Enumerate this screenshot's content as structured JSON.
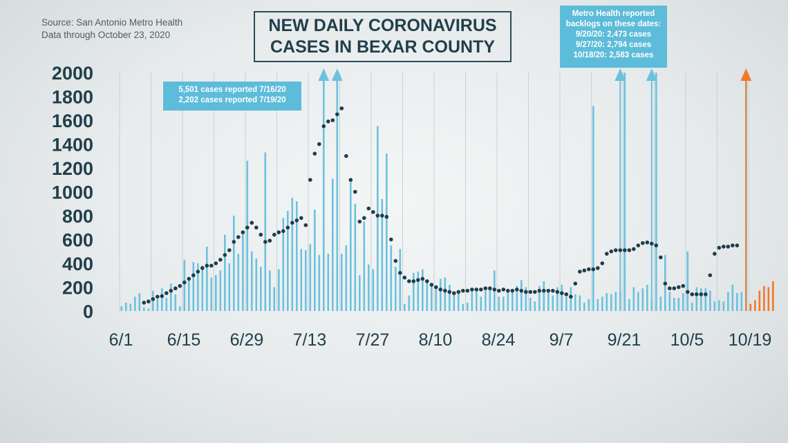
{
  "source": {
    "line1": "Source: San Antonio Metro Health",
    "line2": "Data through October 23, 2020"
  },
  "title": {
    "line1": "NEW DAILY CORONAVIRUS",
    "line2": "CASES IN BEXAR COUNTY"
  },
  "annotations": {
    "left_note": {
      "line1": "5,501 cases reported 7/16/20",
      "line2": "2,202 cases reported 7/19/20"
    },
    "right_note": {
      "line1": "Metro Health reported",
      "line2": "backlogs on these dates:",
      "line3": "9/20/20:  2,473 cases",
      "line4": "9/27/20:  2,794 cases",
      "line5": "10/18/20:  2,583 cases"
    }
  },
  "colors": {
    "bar": "#6cc1de",
    "bar_highlight": "#f07a2a",
    "trend_dots": "#1f3d49",
    "grid": "#c9d0d3",
    "text": "#213f4a",
    "note_fill": "#5dbcd9"
  },
  "chart_data": {
    "type": "bar",
    "ylim": [
      0,
      2000
    ],
    "y_ticks": [
      0,
      200,
      400,
      600,
      800,
      1000,
      1200,
      1400,
      1600,
      1800,
      2000
    ],
    "x_tick_labels": [
      "6/1",
      "6/15",
      "6/29",
      "7/13",
      "7/27",
      "8/10",
      "8/24",
      "9/7",
      "9/21",
      "10/5",
      "10/19"
    ],
    "x_tick_day_index": [
      0,
      14,
      28,
      42,
      56,
      70,
      84,
      98,
      112,
      126,
      140
    ],
    "grid": "vertical",
    "series": [
      {
        "kind": "bars",
        "day_index_start": 0,
        "values": [
          40,
          70,
          60,
          120,
          150,
          30,
          20,
          170,
          100,
          190,
          110,
          230,
          140,
          40,
          430,
          260,
          410,
          400,
          380,
          540,
          280,
          300,
          340,
          640,
          400,
          800,
          480,
          650,
          1260,
          500,
          440,
          370,
          1330,
          340,
          200,
          350,
          780,
          840,
          950,
          920,
          520,
          510,
          560,
          850,
          470,
          2000,
          480,
          1110,
          2000,
          480,
          550,
          1110,
          900,
          300,
          750,
          390,
          350,
          1550,
          940,
          1320,
          550,
          370,
          520,
          60,
          130,
          320,
          330,
          350,
          250,
          230,
          190,
          270,
          280,
          220,
          150,
          170,
          60,
          70,
          170,
          180,
          120,
          170,
          190,
          340,
          120,
          120,
          160,
          160,
          210,
          260,
          200,
          110,
          80,
          210,
          250,
          170,
          130,
          200,
          220,
          120,
          200,
          140,
          130,
          70,
          100,
          1720,
          100,
          120,
          150,
          140,
          160,
          170,
          2000,
          100,
          200,
          160,
          190,
          220,
          100,
          2000,
          120,
          470,
          160,
          110,
          110,
          150,
          500,
          70,
          200,
          190,
          190,
          170,
          80,
          90,
          80,
          160,
          220,
          150,
          160,
          2000,
          60,
          90,
          170,
          210,
          200,
          250
        ],
        "highlight_from_index": 140
      },
      {
        "kind": "moving-average-dots",
        "day_index_start": 5,
        "values": [
          70,
          80,
          100,
          120,
          125,
          150,
          170,
          190,
          210,
          240,
          270,
          300,
          330,
          360,
          380,
          380,
          400,
          430,
          470,
          510,
          580,
          620,
          660,
          700,
          740,
          700,
          640,
          580,
          590,
          640,
          660,
          670,
          700,
          740,
          760,
          780,
          720,
          1100,
          1320,
          1400,
          1550,
          1590,
          1600,
          1650,
          1700,
          1300,
          1100,
          1000,
          750,
          780,
          860,
          830,
          800,
          800,
          790,
          600,
          420,
          320,
          280,
          250,
          250,
          260,
          270,
          250,
          220,
          200,
          180,
          170,
          160,
          150,
          160,
          170,
          170,
          180,
          180,
          180,
          190,
          190,
          180,
          170,
          180,
          170,
          170,
          180,
          170,
          160,
          160,
          160,
          170,
          170,
          170,
          170,
          160,
          150,
          140,
          120,
          230,
          330,
          340,
          350,
          350,
          360,
          400,
          480,
          500,
          510,
          510,
          510,
          510,
          520,
          550,
          570,
          575,
          565,
          550,
          450,
          230,
          190,
          190,
          200,
          210,
          160,
          140,
          140,
          140,
          140,
          300,
          480,
          530,
          540,
          540,
          550,
          550
        ]
      }
    ],
    "arrows_off_scale": [
      {
        "day_index": 45,
        "color": "bar"
      },
      {
        "day_index": 48,
        "color": "bar"
      },
      {
        "day_index": 111,
        "color": "bar"
      },
      {
        "day_index": 118,
        "color": "bar"
      },
      {
        "day_index": 139,
        "color": "bar_highlight"
      }
    ]
  }
}
